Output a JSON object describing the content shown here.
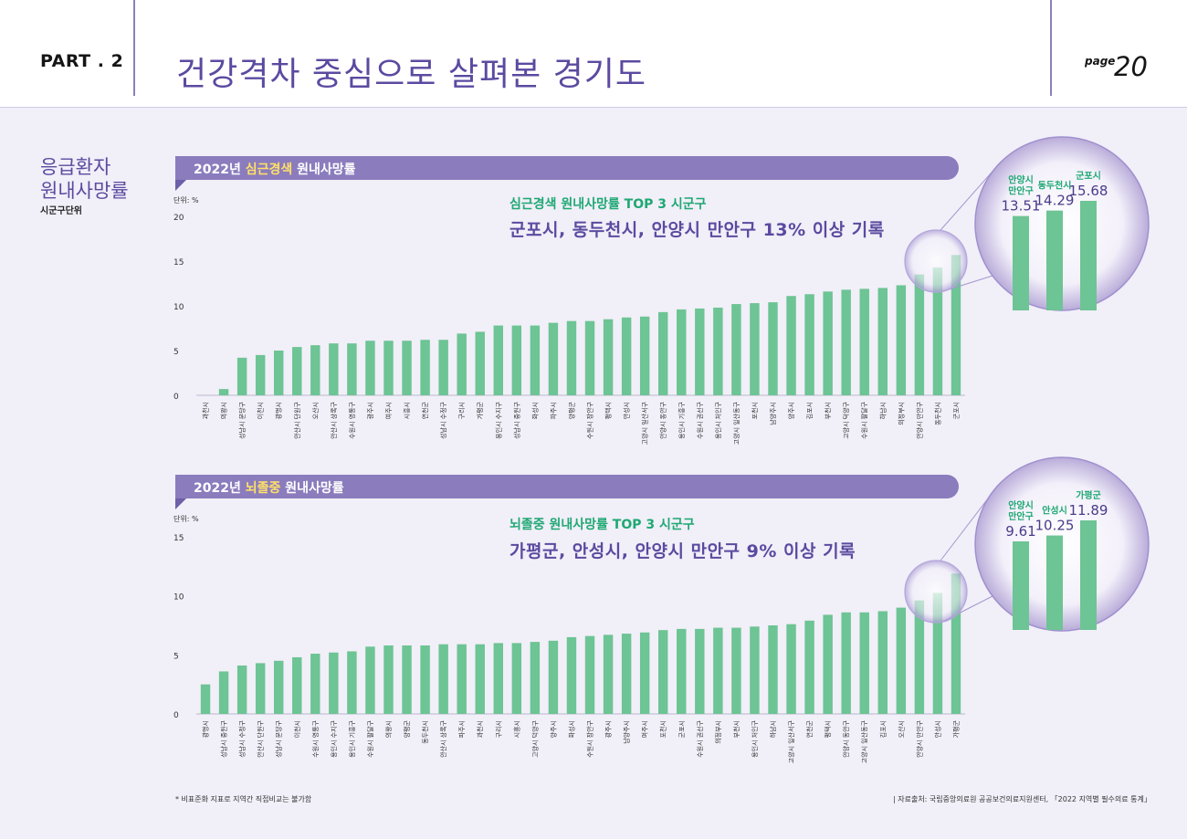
{
  "header": {
    "part": "PART . 2",
    "title": "건강격차 중심으로 살펴본 경기도",
    "page_word": "page",
    "page_number": "20"
  },
  "side": {
    "title_line1": "응급환자",
    "title_line2": "원내사망률",
    "subtitle": "시군구단위"
  },
  "charts": [
    {
      "banner_year": "2022년",
      "banner_highlight": "심근경색",
      "banner_rest": "원내사망률",
      "unit": "단위: %",
      "top3_title": "심근경색 원내사망률 TOP 3 시군구",
      "top3_text": "군포시, 동두천시, 안양시 만안구 13% 이상 기록"
    },
    {
      "banner_year": "2022년",
      "banner_highlight": "뇌졸중",
      "banner_rest": "원내사망률",
      "unit": "단위: %",
      "top3_title": "뇌졸중 원내사망률 TOP 3 시군구",
      "top3_text": "가평군, 안성시, 안양시 만안구 9% 이상 기록"
    }
  ],
  "chart_data": [
    {
      "type": "bar",
      "title": "2022년 심근경색 원내사망률",
      "ylabel": "단위: %",
      "ylim": [
        0,
        20
      ],
      "yticks": [
        0,
        5,
        10,
        15,
        20
      ],
      "color": "#6dc494",
      "categories": [
        "과천시",
        "의왕시",
        "성남시 분당구",
        "이천시",
        "광명시",
        "안산시 단원구",
        "오산시",
        "안산시 상록구",
        "수원시 영통구",
        "광주시",
        "여주시",
        "시흥시",
        "연천군",
        "성남시 수정구",
        "구리시",
        "가평군",
        "용인시 수지구",
        "성남시 중원구",
        "화성시",
        "파주시",
        "양평군",
        "수원시 장안구",
        "평택시",
        "안성시",
        "고양시 일산서구",
        "안양시 동안구",
        "용인시 기흥구",
        "수원시 권선구",
        "용인시 처인구",
        "고양시 일산동구",
        "포천시",
        "남양주시",
        "양주시",
        "김포시",
        "부천시",
        "고양시 덕양구",
        "수원시 팔달구",
        "하남시",
        "의정부시",
        "안양시 만안구",
        "동두천시",
        "군포시"
      ],
      "values": [
        0,
        0.7,
        4.2,
        4.5,
        5.0,
        5.4,
        5.6,
        5.8,
        5.8,
        6.1,
        6.1,
        6.1,
        6.2,
        6.2,
        6.9,
        7.1,
        7.8,
        7.8,
        7.8,
        8.1,
        8.3,
        8.3,
        8.5,
        8.7,
        8.8,
        9.3,
        9.6,
        9.7,
        9.8,
        10.2,
        10.3,
        10.4,
        11.1,
        11.3,
        11.6,
        11.8,
        11.9,
        12.0,
        12.3,
        13.51,
        14.29,
        15.68
      ],
      "zoom": {
        "labels": [
          "안양시 만안구",
          "동두천시",
          "군포시"
        ],
        "values": [
          "13.51",
          "14.29",
          "15.68"
        ]
      }
    },
    {
      "type": "bar",
      "title": "2022년 뇌졸중 원내사망률",
      "ylabel": "단위: %",
      "ylim": [
        0,
        15
      ],
      "yticks": [
        0,
        5,
        10,
        15
      ],
      "color": "#6dc494",
      "categories": [
        "광명시",
        "성남시 중원구",
        "성남시 수정구",
        "안산시 단원구",
        "성남시 분당구",
        "이천시",
        "수원시 영통구",
        "용인시 수지구",
        "용인시 기흥구",
        "수원시 팔달구",
        "의왕시",
        "양평군",
        "동두천시",
        "안산시 상록구",
        "파주시",
        "과천시",
        "구리시",
        "시흥시",
        "고양시 덕양구",
        "양주시",
        "화성시",
        "수원시 장안구",
        "광주시",
        "남양주시",
        "여주시",
        "포천시",
        "군포시",
        "수원시 권선구",
        "의정부시",
        "부천시",
        "용인시 처인구",
        "하남시",
        "고양시 일산서구",
        "연천군",
        "평택시",
        "안양시 동안구",
        "고양시 일산동구",
        "김포시",
        "오산시",
        "안양시 만안구",
        "안성시",
        "가평군"
      ],
      "values": [
        2.5,
        3.6,
        4.1,
        4.3,
        4.5,
        4.8,
        5.1,
        5.2,
        5.3,
        5.7,
        5.8,
        5.8,
        5.8,
        5.9,
        5.9,
        5.9,
        6.0,
        6.0,
        6.1,
        6.2,
        6.5,
        6.6,
        6.7,
        6.8,
        6.9,
        7.1,
        7.2,
        7.2,
        7.3,
        7.3,
        7.4,
        7.5,
        7.6,
        7.9,
        8.4,
        8.6,
        8.6,
        8.7,
        9.0,
        9.61,
        10.25,
        11.89
      ],
      "zoom": {
        "labels": [
          "안양시 만안구",
          "안성시",
          "가평군"
        ],
        "values": [
          "9.61",
          "10.25",
          "11.89"
        ]
      }
    }
  ],
  "footer": {
    "note": "* 비표준화 지표로 지역간 직접비교는 불가함",
    "source": "| 자료출처: 국립중앙의료원 공공보건의료지원센터, 「2022 지역별 필수의료 통계」"
  }
}
